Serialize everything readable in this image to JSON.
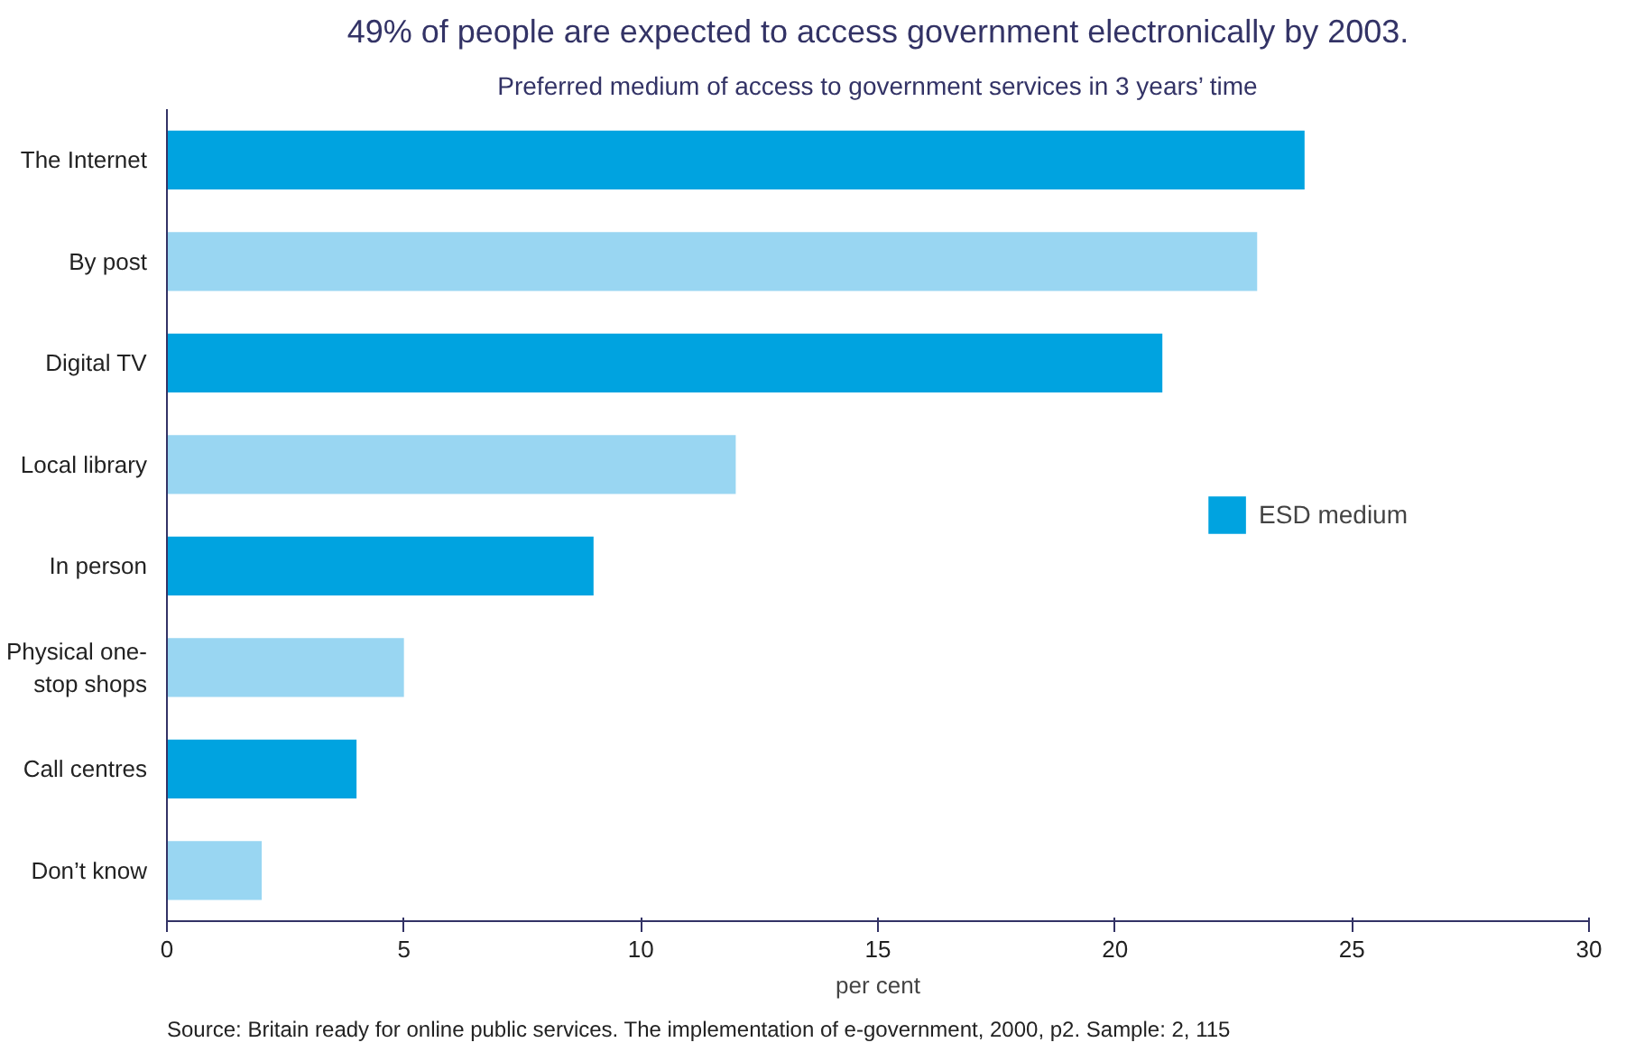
{
  "chart_data": {
    "type": "bar",
    "orientation": "horizontal",
    "title": "49% of people are expected to access government electronically by 2003.",
    "subtitle": "Preferred medium of access to government services in 3 years’ time",
    "xlabel": "per cent",
    "categories": [
      "The Internet",
      "By post",
      "Digital TV",
      "Local library",
      "In person",
      "Physical one-stop shops",
      "Call centres",
      "Don’t know"
    ],
    "series": [
      {
        "name": "ESD medium",
        "color": "#00a3e0",
        "values": [
          24,
          null,
          21,
          null,
          9,
          null,
          4,
          null
        ]
      },
      {
        "color": "#99d6f2",
        "values": [
          null,
          23,
          null,
          12,
          null,
          5,
          null,
          2
        ]
      }
    ],
    "xlim": [
      0,
      30
    ],
    "xticks": [
      0,
      5,
      10,
      15,
      20,
      25,
      30
    ],
    "grid": false,
    "legend": "right",
    "annotations": [
      "Source: Britain ready for online public services. The implementation of e-government, 2000, p2. Sample: 2, 115"
    ]
  }
}
